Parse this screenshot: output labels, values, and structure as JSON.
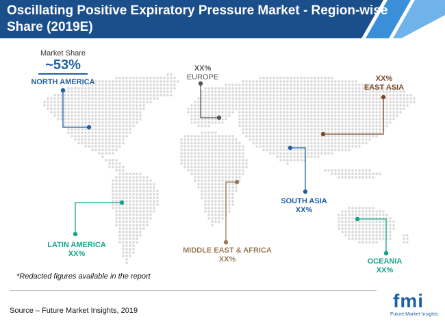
{
  "header": {
    "title": "Oscillating Positive Expiratory Pressure Market - Region-wise Share (2019E)"
  },
  "market_share": {
    "label": "Market Share",
    "value": "~53%"
  },
  "regions": {
    "north_america": {
      "name": "NORTH AMERICA",
      "value": "",
      "color": "#1f5fa6"
    },
    "europe": {
      "name": "EUROPE",
      "value": "XX%",
      "color": "#555555"
    },
    "east_asia": {
      "name": "EAST ASIA",
      "value": "XX%",
      "color": "#7a4a2a"
    },
    "south_asia": {
      "name": "SOUTH ASIA",
      "value": "XX%",
      "color": "#1f5fa6"
    },
    "latin_america": {
      "name": "LATIN AMERICA",
      "value": "XX%",
      "color": "#13a38a"
    },
    "mea": {
      "name": "MIDDLE EAST & AFRICA",
      "value": "XX%",
      "color": "#9a7a55"
    },
    "oceania": {
      "name": "OCEANIA",
      "value": "XX%",
      "color": "#13a38a"
    }
  },
  "footer": {
    "note": "*Redacted figures available in the report",
    "source": "Source – Future Market Insights, 2019"
  },
  "logo": {
    "text": "fmi",
    "subtext": "Future Market Insights"
  },
  "colors": {
    "header_dark": "#1b4f8c",
    "header_light": "#3a8fd8",
    "map_dots": "#d6d6d6"
  }
}
